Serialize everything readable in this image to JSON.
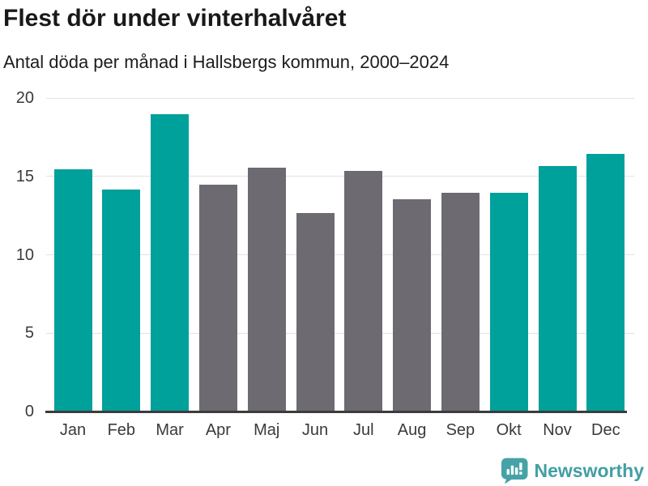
{
  "header": {
    "title": "Flest dör under vinterhalvåret",
    "subtitle": "Antal döda per månad i Hallsbergs kommun, 2000–2024"
  },
  "chart_data": {
    "type": "bar",
    "title": "Flest dör under vinterhalvåret",
    "subtitle": "Antal döda per månad i Hallsbergs kommun, 2000–2024",
    "categories": [
      "Jan",
      "Feb",
      "Mar",
      "Apr",
      "Maj",
      "Jun",
      "Jul",
      "Aug",
      "Sep",
      "Okt",
      "Nov",
      "Dec"
    ],
    "values": [
      15.4,
      14.1,
      18.9,
      14.4,
      15.5,
      12.6,
      15.3,
      13.5,
      13.9,
      13.9,
      15.6,
      16.4
    ],
    "bar_color_roles": [
      "highlight",
      "highlight",
      "highlight",
      "muted",
      "muted",
      "muted",
      "muted",
      "muted",
      "muted",
      "highlight",
      "highlight",
      "highlight"
    ],
    "xlabel": "",
    "ylabel": "",
    "ylim": [
      0,
      20
    ],
    "yticks": [
      0,
      5,
      10,
      15,
      20
    ],
    "grid": true,
    "legend_position": "none",
    "colors": {
      "highlight": "#00a09b",
      "muted": "#6e6a71",
      "gridline": "#e2e2e2",
      "axis": "#3c3c3c",
      "tick_text": "#3a3a3a"
    }
  },
  "footer": {
    "brand": "Newsworthy",
    "logo_icon": "newsworthy-speech-bubble-bar-chart-icon",
    "brand_color": "#419fa4",
    "logo_fill": "#45a3a6"
  }
}
